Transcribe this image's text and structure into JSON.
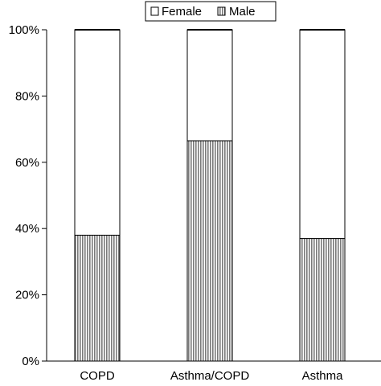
{
  "chart_data": {
    "type": "bar",
    "stacked": true,
    "categories": [
      "COPD",
      "Asthma/COPD",
      "Asthma"
    ],
    "series": [
      {
        "name": "Male",
        "values": [
          38,
          66.5,
          37
        ],
        "fill": "hatch-vertical-gray"
      },
      {
        "name": "Female",
        "values": [
          62,
          33.5,
          63
        ],
        "fill": "#ffffff"
      }
    ],
    "ylim": [
      0,
      100
    ],
    "yticks": [
      0,
      20,
      40,
      60,
      80,
      100
    ],
    "ytick_labels": [
      "0%",
      "20%",
      "40%",
      "60%",
      "80%",
      "100%"
    ],
    "grid": false,
    "legend": {
      "position": "top-center",
      "entries": [
        "Female",
        "Male"
      ]
    },
    "colors": {
      "axis": "#000000",
      "male_hatch": "#7a7a7a",
      "female": "#ffffff"
    }
  }
}
